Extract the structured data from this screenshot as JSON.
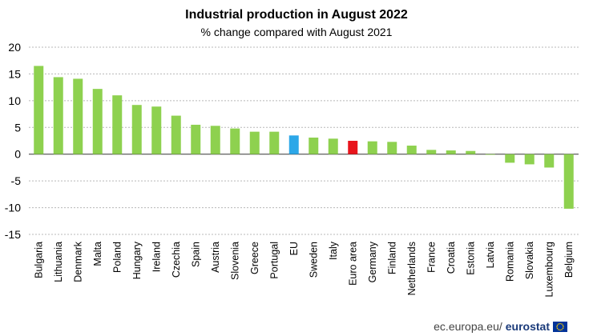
{
  "chart_data": {
    "type": "bar",
    "title": "Industrial production in August 2022",
    "subtitle": "% change compared with August 2021",
    "xlabel": "",
    "ylabel": "",
    "ylim": [
      -15,
      20
    ],
    "yticks": [
      20,
      15,
      10,
      5,
      0,
      -5,
      -10,
      -15
    ],
    "grid": true,
    "categories": [
      "Bulgaria",
      "Lithuania",
      "Denmark",
      "Malta",
      "Poland",
      "Hungary",
      "Ireland",
      "Czechia",
      "Spain",
      "Austria",
      "Slovenia",
      "Greece",
      "Portugal",
      "EU",
      "Sweden",
      "Italy",
      "Euro area",
      "Germany",
      "Finland",
      "Netherlands",
      "France",
      "Croatia",
      "Estonia",
      "Latvia",
      "Romania",
      "Slovakia",
      "Luxembourg",
      "Belgium"
    ],
    "values": [
      16.5,
      14.4,
      14.1,
      12.2,
      11.0,
      9.2,
      8.9,
      7.2,
      5.5,
      5.3,
      4.8,
      4.2,
      4.2,
      3.5,
      3.1,
      2.9,
      2.5,
      2.4,
      2.3,
      1.6,
      0.8,
      0.7,
      0.6,
      -0.1,
      -1.6,
      -1.9,
      -2.5,
      -10.2
    ],
    "colors": {
      "default": "#8ed14f",
      "EU": "#2ca7e8",
      "Euro area": "#e8141c"
    }
  },
  "source": {
    "site": "ec.europa.eu/",
    "brand": "eurostat"
  }
}
